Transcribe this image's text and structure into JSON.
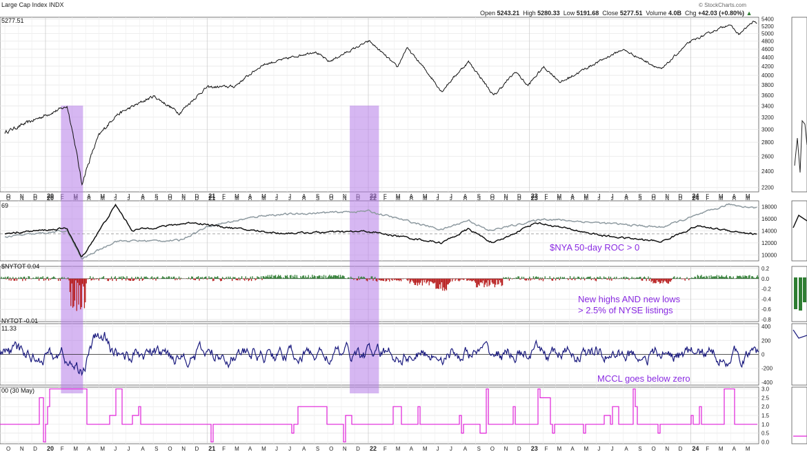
{
  "header": {
    "symbol_title": "Large Cap Index  INDX",
    "open_label": "Open",
    "open_value": "5243.21",
    "high_label": "High",
    "high_value": "5280.33",
    "low_label": "Low",
    "low_value": "5191.68",
    "close_label": "Close",
    "close_value": "5277.51",
    "volume_label": "Volume",
    "volume_value": "4.0B",
    "chg_label": "Chg",
    "chg_value": "+42.03 (+0.80%)",
    "brand": "© StockCharts.com",
    "last_price": "5277.51"
  },
  "panels": {
    "p2_title": "69",
    "p3_title": "$NYTOT 0.04",
    "p4_title_a": "NYTOT -0.01",
    "p4_title_b": "11.33",
    "p5_title": "00 (30 May)"
  },
  "annotations": {
    "roc": "$NYA 50-day ROC > 0",
    "hilo_1": "New highs AND new lows",
    "hilo_2": "> 2.5% of NYSE listings",
    "mccl": "MCCL goes below zero"
  },
  "colors": {
    "price": "#111111",
    "nya": "#8e9aa0",
    "highlight": "#b57be8",
    "bar_up": "#2e7d32",
    "bar_down": "#b71c1c",
    "mccl": "#1a1a7e",
    "signal": "#e020d8",
    "annotation": "#8a2be2"
  },
  "chart_data": [
    {
      "type": "line",
      "panel": "price",
      "series_name": "Large Cap Index",
      "x_months": [
        "O",
        "N",
        "D",
        "20",
        "F",
        "M",
        "A",
        "M",
        "J",
        "J",
        "A",
        "S",
        "O",
        "N",
        "D",
        "21",
        "F",
        "M",
        "A",
        "M",
        "J",
        "J",
        "A",
        "S",
        "O",
        "N",
        "D",
        "22",
        "F",
        "M",
        "A",
        "M",
        "J",
        "J",
        "A",
        "S",
        "O",
        "N",
        "D",
        "23",
        "F",
        "M",
        "A",
        "M",
        "J",
        "J",
        "A",
        "S",
        "O",
        "N",
        "D",
        "24",
        "F",
        "M",
        "A",
        "M"
      ],
      "x_range": [
        "2019-10-01",
        "2024-05-30"
      ],
      "y_ticks": [
        2200,
        2400,
        2600,
        2800,
        3000,
        3200,
        3400,
        3600,
        3800,
        4000,
        4200,
        4400,
        4600,
        4800,
        5000,
        5200,
        5400
      ],
      "ylim": [
        2150,
        5450
      ],
      "scale": "log",
      "points": [
        [
          "2019-10-01",
          2950
        ],
        [
          "2019-12-15",
          3180
        ],
        [
          "2020-02-19",
          3390
        ],
        [
          "2020-03-23",
          2240
        ],
        [
          "2020-04-30",
          2890
        ],
        [
          "2020-06-08",
          3230
        ],
        [
          "2020-09-02",
          3580
        ],
        [
          "2020-10-30",
          3270
        ],
        [
          "2020-12-31",
          3750
        ],
        [
          "2021-03-04",
          3770
        ],
        [
          "2021-05-07",
          4230
        ],
        [
          "2021-09-02",
          4540
        ],
        [
          "2021-10-04",
          4300
        ],
        [
          "2022-01-03",
          4800
        ],
        [
          "2022-03-08",
          4170
        ],
        [
          "2022-03-29",
          4630
        ],
        [
          "2022-06-16",
          3670
        ],
        [
          "2022-08-16",
          4300
        ],
        [
          "2022-10-12",
          3580
        ],
        [
          "2022-12-01",
          4080
        ],
        [
          "2022-12-28",
          3780
        ],
        [
          "2023-02-02",
          4180
        ],
        [
          "2023-03-13",
          3850
        ],
        [
          "2023-07-31",
          4590
        ],
        [
          "2023-10-27",
          4120
        ],
        [
          "2023-12-29",
          4770
        ],
        [
          "2024-03-28",
          5250
        ],
        [
          "2024-04-19",
          4970
        ],
        [
          "2024-05-21",
          5320
        ],
        [
          "2024-05-30",
          5277
        ]
      ]
    },
    {
      "type": "line",
      "panel": "nya",
      "series": [
        {
          "style": "gray",
          "points": [
            [
              "2019-10-01",
              13000
            ],
            [
              "2020-02-19",
              14000
            ],
            [
              "2020-03-23",
              9300
            ],
            [
              "2020-06-08",
              12300
            ],
            [
              "2020-10-30",
              12400
            ],
            [
              "2021-01-04",
              14800
            ],
            [
              "2021-05-10",
              16600
            ],
            [
              "2021-12-31",
              17300
            ],
            [
              "2022-06-16",
              14200
            ],
            [
              "2022-08-16",
              15800
            ],
            [
              "2022-09-30",
              14000
            ],
            [
              "2023-02-02",
              16000
            ],
            [
              "2023-10-27",
              14600
            ],
            [
              "2024-03-28",
              18400
            ],
            [
              "2024-05-30",
              17800
            ]
          ]
        },
        {
          "style": "black",
          "points": [
            [
              "2019-10-01",
              13600
            ],
            [
              "2020-02-19",
              14400
            ],
            [
              "2020-03-23",
              9500
            ],
            [
              "2020-06-08",
              18300
            ],
            [
              "2020-07-15",
              14100
            ],
            [
              "2020-11-30",
              15400
            ],
            [
              "2021-03-15",
              14300
            ],
            [
              "2021-06-15",
              13600
            ],
            [
              "2021-12-31",
              13900
            ],
            [
              "2022-06-16",
              12000
            ],
            [
              "2022-08-16",
              14300
            ],
            [
              "2022-10-12",
              11900
            ],
            [
              "2023-01-15",
              15400
            ],
            [
              "2023-06-15",
              13200
            ],
            [
              "2023-10-27",
              12200
            ],
            [
              "2024-01-15",
              14800
            ],
            [
              "2024-05-30",
              13400
            ]
          ]
        }
      ],
      "y_ticks": [
        10000,
        12000,
        14000,
        16000,
        18000
      ],
      "ylim": [
        9000,
        19000
      ]
    },
    {
      "type": "bar",
      "panel": "nytot",
      "y_ticks": [
        0.2,
        0.0,
        -0.2,
        -0.4,
        -0.6,
        -0.8
      ],
      "ylim": [
        -0.84,
        0.24
      ],
      "last_value": 0.04
    },
    {
      "type": "line",
      "panel": "mccl",
      "y_ticks": [
        400,
        200,
        0,
        -200,
        -400
      ],
      "ylim": [
        -440,
        440
      ],
      "last_value": 11.33
    },
    {
      "type": "line",
      "panel": "signal",
      "y_ticks": [
        3.0,
        2.5,
        2.0,
        1.5,
        1.0,
        0.5,
        0.0
      ],
      "ylim": [
        -0.1,
        3.1
      ]
    }
  ],
  "highlights": [
    [
      "2020-02-05",
      "2020-03-26"
    ],
    [
      "2021-11-20",
      "2022-01-25"
    ]
  ]
}
